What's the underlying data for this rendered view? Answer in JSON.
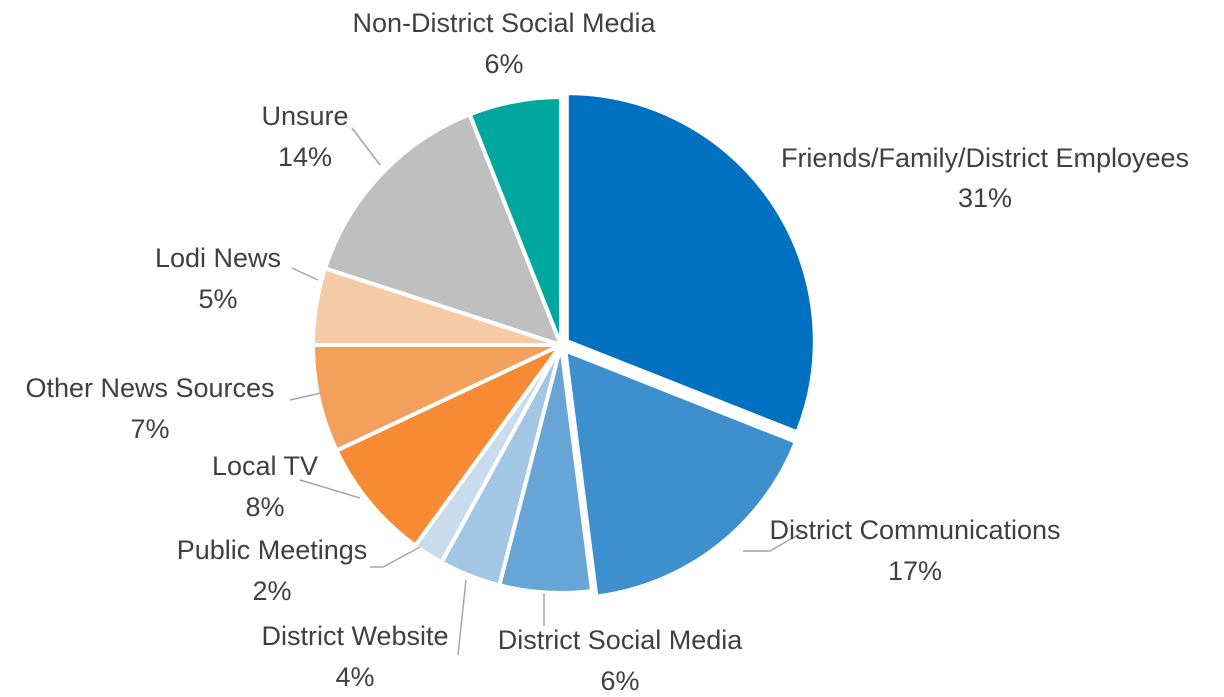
{
  "chart_data": {
    "type": "pie",
    "start_angle_deg": 0,
    "direction": "clockwise",
    "slices": [
      {
        "label": "Friends/Family/District Employees",
        "pct_label": "31%",
        "value": 31,
        "color": "#0070c0",
        "exploded": true
      },
      {
        "label": "District Communications",
        "pct_label": "17%",
        "value": 17,
        "color": "#3d8fcd",
        "exploded": true
      },
      {
        "label": "District Social Media",
        "pct_label": "6%",
        "value": 6,
        "color": "#66a5d5",
        "exploded": false
      },
      {
        "label": "District Website",
        "pct_label": "4%",
        "value": 4,
        "color": "#a2c6e4",
        "exploded": false
      },
      {
        "label": "Public Meetings",
        "pct_label": "2%",
        "value": 2,
        "color": "#c8dced",
        "exploded": false
      },
      {
        "label": "Local TV",
        "pct_label": "8%",
        "value": 8,
        "color": "#f68b33",
        "exploded": false
      },
      {
        "label": "Other News Sources",
        "pct_label": "7%",
        "value": 7,
        "color": "#f4a05d",
        "exploded": false
      },
      {
        "label": "Lodi News",
        "pct_label": "5%",
        "value": 5,
        "color": "#f5cba7",
        "exploded": false
      },
      {
        "label": "Unsure",
        "pct_label": "14%",
        "value": 14,
        "color": "#bfbfbf",
        "exploded": false
      },
      {
        "label": "Non-District Social Media",
        "pct_label": "6%",
        "value": 6,
        "color": "#00a79d",
        "exploded": false
      }
    ]
  }
}
